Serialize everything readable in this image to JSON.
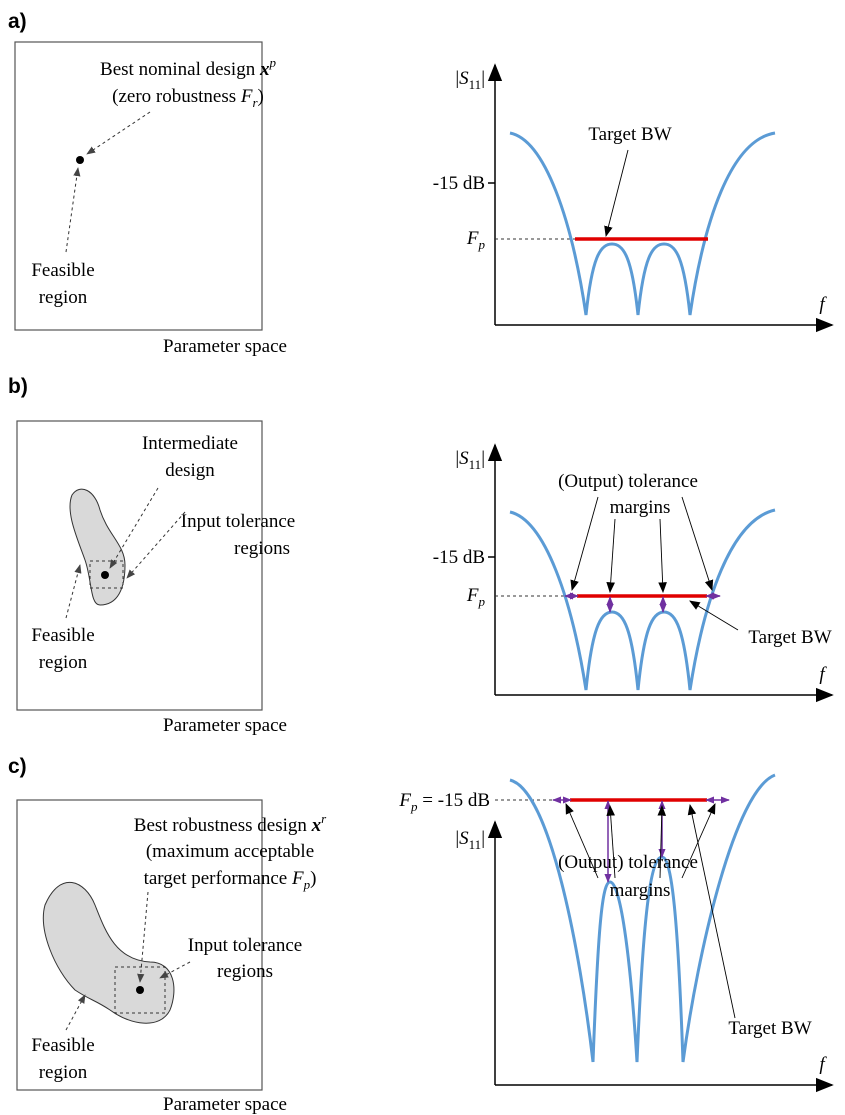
{
  "panels": [
    {
      "label": "a)",
      "left": {
        "texts": [
          [
            {
              "t": "Best nominal design "
            },
            {
              "t": "x",
              "s": "bi"
            },
            {
              "t": "p",
              "s": "isup"
            }
          ],
          [
            {
              "t": "(zero robustness "
            },
            {
              "t": "F",
              "s": "i"
            },
            {
              "t": "r",
              "s": "isub"
            },
            {
              "t": ")"
            }
          ],
          [
            {
              "t": "Feasible"
            }
          ],
          [
            {
              "t": "region"
            }
          ]
        ],
        "caption": "Parameter space"
      },
      "right": {
        "ylabel": [
          {
            "t": "|"
          },
          {
            "t": "S",
            "s": "i"
          },
          {
            "t": "11",
            "s": "sub"
          },
          {
            "t": "|"
          }
        ],
        "level": [
          {
            "t": "-15 dB"
          }
        ],
        "fp": [
          {
            "t": "F",
            "s": "i"
          },
          {
            "t": "p",
            "s": "isub"
          }
        ],
        "xlabel": [
          {
            "t": "f",
            "s": "i"
          }
        ],
        "notes": [
          [
            {
              "t": "Target BW"
            }
          ]
        ]
      }
    },
    {
      "label": "b)",
      "left": {
        "texts": [
          [
            {
              "t": "Intermediate"
            }
          ],
          [
            {
              "t": "design"
            }
          ],
          [
            {
              "t": "Input tolerance"
            }
          ],
          [
            {
              "t": "regions"
            }
          ],
          [
            {
              "t": "Feasible"
            }
          ],
          [
            {
              "t": "region"
            }
          ]
        ],
        "caption": "Parameter space"
      },
      "right": {
        "ylabel": [
          {
            "t": "|"
          },
          {
            "t": "S",
            "s": "i"
          },
          {
            "t": "11",
            "s": "sub"
          },
          {
            "t": "|"
          }
        ],
        "level": [
          {
            "t": "-15 dB"
          }
        ],
        "fp": [
          {
            "t": "F",
            "s": "i"
          },
          {
            "t": "p",
            "s": "isub"
          }
        ],
        "xlabel": [
          {
            "t": "f",
            "s": "i"
          }
        ],
        "notes": [
          [
            {
              "t": "(Output) tolerance"
            }
          ],
          [
            {
              "t": "margins"
            }
          ],
          [
            {
              "t": "Target BW"
            }
          ]
        ]
      }
    },
    {
      "label": "c)",
      "left": {
        "texts": [
          [
            {
              "t": "Best robustness design "
            },
            {
              "t": "x",
              "s": "bi"
            },
            {
              "t": "r",
              "s": "isup"
            }
          ],
          [
            {
              "t": "(maximum acceptable"
            }
          ],
          [
            {
              "t": "target performance "
            },
            {
              "t": "F",
              "s": "i"
            },
            {
              "t": "p",
              "s": "isub"
            },
            {
              "t": ")"
            }
          ],
          [
            {
              "t": "Input tolerance"
            }
          ],
          [
            {
              "t": "regions"
            }
          ],
          [
            {
              "t": "Feasible"
            }
          ],
          [
            {
              "t": "region"
            }
          ]
        ],
        "caption": "Parameter space"
      },
      "right": {
        "ylabel": [
          {
            "t": "|"
          },
          {
            "t": "S",
            "s": "i"
          },
          {
            "t": "11",
            "s": "sub"
          },
          {
            "t": "|"
          }
        ],
        "fp": [
          {
            "t": "F",
            "s": "i"
          },
          {
            "t": "p",
            "s": "isub"
          },
          {
            "t": " = -15 dB"
          }
        ],
        "xlabel": [
          {
            "t": "f",
            "s": "i"
          }
        ],
        "notes": [
          [
            {
              "t": "(Output) tolerance"
            }
          ],
          [
            {
              "t": "margins"
            }
          ],
          [
            {
              "t": "Target BW"
            }
          ]
        ]
      }
    }
  ]
}
